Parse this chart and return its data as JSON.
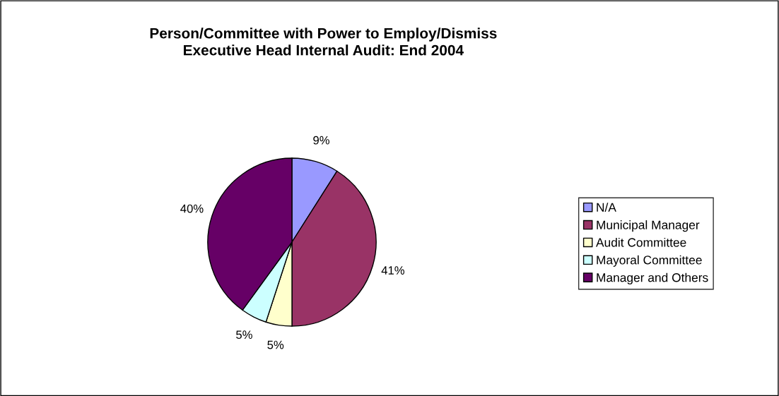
{
  "chart_data": {
    "type": "pie",
    "title": "Person/Committee with Power to Employ/Dismiss\nExecutive Head Internal Audit: End 2004",
    "categories": [
      "N/A",
      "Municipal Manager",
      "Audit Committee",
      "Mayoral Committee",
      "Manager and Others"
    ],
    "values": [
      9,
      41,
      5,
      5,
      40
    ],
    "colors": [
      "#9999ff",
      "#993366",
      "#ffffcc",
      "#ccffff",
      "#660066"
    ],
    "value_labels": [
      "9%",
      "41%",
      "5%",
      "5%",
      "40%"
    ],
    "legend": "right"
  }
}
